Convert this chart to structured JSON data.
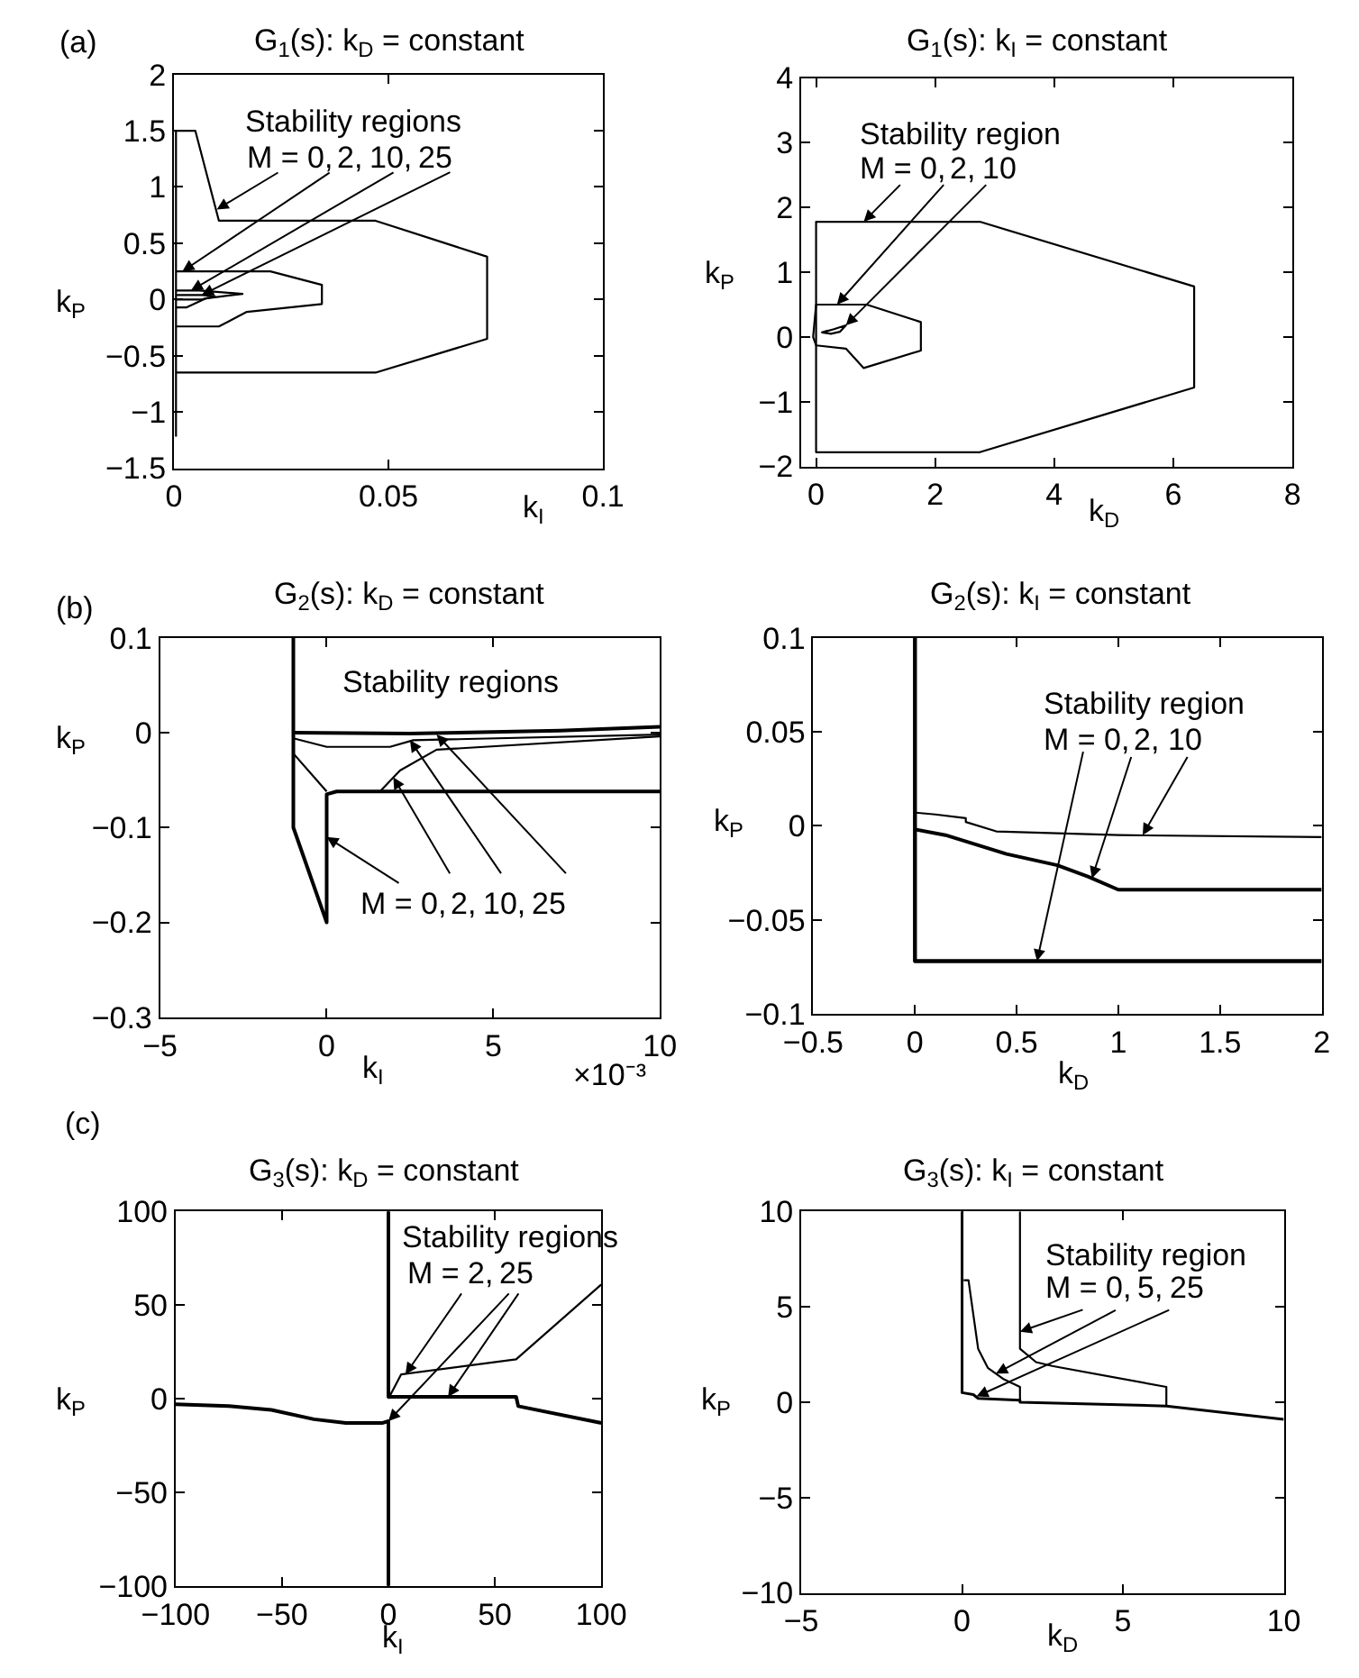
{
  "chart_data": [
    {
      "type": "line",
      "title": "G$_{1}$(s): k$_{D}$ = constant",
      "xlabel": "k$_{I}$",
      "ylabel": "k$_{P}$",
      "xlim": [
        0,
        0.1
      ],
      "ylim": [
        -1.5,
        2
      ],
      "xticks": [
        0,
        0.05,
        0.1
      ],
      "yticks": [
        -1.5,
        -1,
        -0.5,
        0,
        0.5,
        1,
        1.5,
        2
      ],
      "annotations": [
        "(a)",
        "Stability regions",
        {
          "text": "M = 0,",
          "x": 0.01,
          "y": 0.8
        },
        {
          "text": "2,",
          "x": 0.002,
          "y": 0.25
        },
        {
          "text": "10,",
          "x": 0.004,
          "y": 0.08
        },
        {
          "text": "25",
          "x": 0.0065,
          "y": 0.04
        }
      ],
      "series": [
        {
          "color": "#000000",
          "x": [
            0.0005,
            0.0005,
            0.005,
            0.0105,
            0.047,
            0.073,
            0.073,
            0.047,
            0.0005
          ],
          "values": [
            -1.22,
            1.5,
            1.5,
            0.7,
            0.7,
            0.38,
            -0.35,
            -0.65,
            -0.65
          ]
        },
        {
          "color": "#000000",
          "x": [
            0.0005,
            0.0225,
            0.0345,
            0.0345,
            0.017,
            0.0105,
            0.0005
          ],
          "values": [
            0.25,
            0.25,
            0.13,
            -0.04,
            -0.11,
            -0.24,
            -0.24
          ]
        },
        {
          "color": "#000000",
          "x": [
            0.0005,
            0.006,
            0.016,
            0.0075,
            0.003,
            0.0005
          ],
          "values": [
            0.08,
            0.08,
            0.05,
            0.01,
            -0.07,
            -0.07
          ]
        },
        {
          "color": "#000000",
          "x": [
            0.0005,
            0.0065,
            0.0095,
            0.0065,
            0.0005
          ],
          "values": [
            0.04,
            0.04,
            0.03,
            0,
            0
          ]
        }
      ]
    },
    {
      "type": "line",
      "title": "G$_{1}$(s): k$_{I}$ = constant",
      "xlabel": "k$_{D}$",
      "ylabel": "k$_{P}$",
      "xlim": [
        -0.25,
        8
      ],
      "ylim": [
        -2,
        4
      ],
      "xticks": [
        0,
        2,
        4,
        6,
        8
      ],
      "yticks": [
        -2,
        -1,
        0,
        1,
        2,
        3,
        4
      ],
      "annotations": [
        "Stability region",
        {
          "text": "M = 0,",
          "x": 0.8,
          "y": 1.78
        },
        {
          "text": "2,",
          "x": 0.35,
          "y": 0.5
        },
        {
          "text": "10",
          "x": 0.5,
          "y": 0.18
        }
      ],
      "series": [
        {
          "color": "#000000",
          "x": [
            1,
            0,
            0,
            2.75,
            6.35,
            6.35,
            2.75,
            0.5
          ],
          "values": [
            -1.78,
            -1.78,
            1.78,
            1.78,
            0.78,
            -0.78,
            -1.78,
            -1.78
          ]
        },
        {
          "color": "#000000",
          "x": [
            0.4,
            0.85,
            1.76,
            1.76,
            0.8,
            0.5,
            0,
            -0.05,
            0,
            0.6
          ],
          "values": [
            0.5,
            0.5,
            0.23,
            -0.21,
            -0.48,
            -0.18,
            -0.13,
            0,
            0.5,
            0.5
          ]
        },
        {
          "color": "#000000",
          "x": [
            0.15,
            0.3,
            0.5,
            0.4,
            0.25,
            0.1,
            0.2
          ],
          "values": [
            0.08,
            0.12,
            0.18,
            0.08,
            0.05,
            0.07,
            0.1
          ]
        }
      ]
    },
    {
      "type": "line",
      "title": "G$_{2}$(s): k$_{D}$ = constant",
      "xlabel": "k$_{I}$",
      "ylabel": "k$_{P}$",
      "xlim": [
        -5,
        10
      ],
      "ylim": [
        -0.3,
        0.1
      ],
      "xticks": [
        -5,
        0,
        5,
        10
      ],
      "yticks": [
        -0.3,
        -0.2,
        -0.1,
        0,
        0.1
      ],
      "annotations": [
        "(b)",
        "Stability regions",
        {
          "text": "M = 0,",
          "x": 0,
          "y": -0.11
        },
        {
          "text": "2,",
          "x": 2,
          "y": -0.047
        },
        {
          "text": "10,",
          "x": 2.5,
          "y": -0.008
        },
        {
          "text": "25",
          "x": 3.3,
          "y": -0.002
        },
        "×10⁻³"
      ],
      "series": [
        {
          "color": "#000000",
          "x": [
            -1,
            -1,
            0,
            0,
            0.3,
            10
          ],
          "values": [
            0.1,
            -0.1,
            -0.2,
            -0.065,
            -0.062,
            -0.062
          ]
        },
        {
          "color": "#000000",
          "x": [
            -1,
            2.5,
            7,
            10
          ],
          "values": [
            0,
            -0.001,
            0.002,
            0.006
          ]
        },
        {
          "color": "#000000",
          "x": [
            -1,
            0,
            1.9,
            2.6,
            10
          ],
          "values": [
            -0.006,
            -0.015,
            -0.015,
            -0.008,
            -0.002
          ]
        },
        {
          "color": "#000000",
          "x": [
            -1,
            0
          ],
          "values": [
            -0.022,
            -0.062
          ]
        },
        {
          "color": "#000000",
          "x": [
            1.6,
            2.2,
            3.3,
            10
          ],
          "values": [
            -0.062,
            -0.04,
            -0.018,
            -0.004
          ]
        }
      ]
    },
    {
      "type": "line",
      "title": "G$_{2}$(s): k$_{I}$ = constant",
      "xlabel": "k$_{D}$",
      "ylabel": "k$_{P}$",
      "xlim": [
        -0.5,
        2
      ],
      "ylim": [
        -0.1,
        0.1
      ],
      "xticks": [
        -0.5,
        0,
        0.5,
        1,
        1.5,
        2
      ],
      "yticks": [
        -0.1,
        -0.05,
        0,
        0.05,
        0.1
      ],
      "annotations": [
        "Stability region",
        {
          "text": "M = 0,",
          "x": 0.6,
          "y": -0.072
        },
        {
          "text": "2,",
          "x": 0.87,
          "y": -0.028
        },
        {
          "text": "10",
          "x": 1.12,
          "y": -0.005
        }
      ],
      "series": [
        {
          "color": "#000000",
          "x": [
            0,
            0,
            2
          ],
          "values": [
            0.1,
            -0.072,
            -0.072
          ]
        },
        {
          "color": "#000000",
          "x": [
            0,
            0.15,
            0.45,
            0.7,
            0.85,
            1,
            2
          ],
          "values": [
            -0.002,
            -0.005,
            -0.015,
            -0.021,
            -0.027,
            -0.034,
            -0.034
          ]
        },
        {
          "color": "#000000",
          "x": [
            0,
            0.1,
            0.25,
            0.25,
            0.4,
            1,
            2
          ],
          "values": [
            0.007,
            0.006,
            0.004,
            0.002,
            -0.003,
            -0.005,
            -0.006
          ]
        }
      ]
    },
    {
      "type": "line",
      "title": "G$_{3}$(s): k$_{D}$ = constant",
      "xlabel": "k$_{I}$",
      "ylabel": "k$_{P}$",
      "xlim": [
        -100,
        100
      ],
      "ylim": [
        -100,
        100
      ],
      "xticks": [
        -100,
        -50,
        0,
        50,
        100
      ],
      "yticks": [
        -100,
        -50,
        0,
        50,
        100
      ],
      "annotations": [
        "(c)",
        "Stability regions",
        {
          "text": "M = 2,",
          "x": 8,
          "y": 13
        },
        {
          "text": "25",
          "x": 28,
          "y": 1
        }
      ],
      "series": [
        {
          "color": "#000000",
          "x": [
            0,
            0,
            60,
            61,
            100
          ],
          "values": [
            100,
            1,
            1,
            -4,
            -13
          ]
        },
        {
          "color": "#000000",
          "x": [
            -100,
            -75,
            -55,
            -35,
            -20,
            -3,
            0,
            0
          ],
          "values": [
            -3,
            -4,
            -6,
            -11,
            -13,
            -13,
            -12,
            -100
          ]
        },
        {
          "color": "#000000",
          "x": [
            0,
            6,
            60,
            100
          ],
          "values": [
            0,
            13,
            21,
            61
          ]
        }
      ]
    },
    {
      "type": "line",
      "title": "G$_{3}$(s): k$_{I}$ = constant",
      "xlabel": "k$_{D}$",
      "ylabel": "k$_{P}$",
      "xlim": [
        -5,
        10
      ],
      "ylim": [
        -10,
        10
      ],
      "xticks": [
        -5,
        0,
        5,
        10
      ],
      "yticks": [
        -10,
        -5,
        0,
        5,
        10
      ],
      "annotations": [
        "Stability region",
        {
          "text": "M = 0,",
          "x": 1.8,
          "y": 3.7
        },
        {
          "text": "5,",
          "x": 1.05,
          "y": 1.5
        },
        {
          "text": "25",
          "x": 0.45,
          "y": 0.3
        }
      ],
      "series": [
        {
          "color": "#000000",
          "x": [
            0,
            0,
            0.35,
            0.5,
            1.8,
            1.8,
            6.35,
            10
          ],
          "values": [
            10,
            0.5,
            0.4,
            0.2,
            0.1,
            0,
            -0.2,
            -0.9
          ]
        },
        {
          "color": "#000000",
          "x": [
            0.05,
            0.2,
            0.5,
            0.8,
            1.3,
            1.8,
            1.8
          ],
          "values": [
            6.4,
            6.4,
            2.8,
            1.8,
            1.2,
            0.8,
            0.1
          ]
        },
        {
          "color": "#000000",
          "x": [
            1.8,
            1.8,
            2.3,
            2.8,
            6.35,
            6.35
          ],
          "values": [
            10,
            2.8,
            2.1,
            1.9,
            0.8,
            -0.2
          ]
        }
      ]
    }
  ]
}
